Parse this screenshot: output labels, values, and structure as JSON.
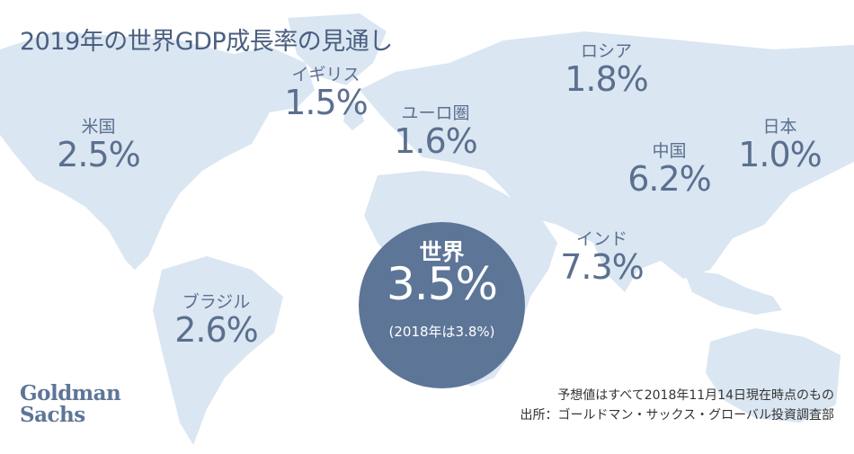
{
  "title": "2019年の世界GDP成長率の見通し",
  "regions": {
    "us": {
      "name": "米国",
      "value": "2.5%"
    },
    "uk": {
      "name": "イギリス",
      "value": "1.5%"
    },
    "euro": {
      "name": "ユーロ圏",
      "value": "1.6%"
    },
    "russia": {
      "name": "ロシア",
      "value": "1.8%"
    },
    "japan": {
      "name": "日本",
      "value": "1.0%"
    },
    "china": {
      "name": "中国",
      "value": "6.2%"
    },
    "india": {
      "name": "インド",
      "value": "7.3%"
    },
    "brazil": {
      "name": "ブラジル",
      "value": "2.6%"
    }
  },
  "world": {
    "name": "世界",
    "value": "3.5%",
    "previous": "(2018年は3.8%)"
  },
  "logo": {
    "line1": "Goldman",
    "line2": "Sachs"
  },
  "footnote": {
    "note": "予想値はすべて2018年11月14日現在時点のもの",
    "source": "出所：ゴールドマン・サックス・グローバル投資調査部"
  },
  "colors": {
    "map": "#dae6f2",
    "text": "#5b6f8f",
    "circle": "#5d7597"
  }
}
